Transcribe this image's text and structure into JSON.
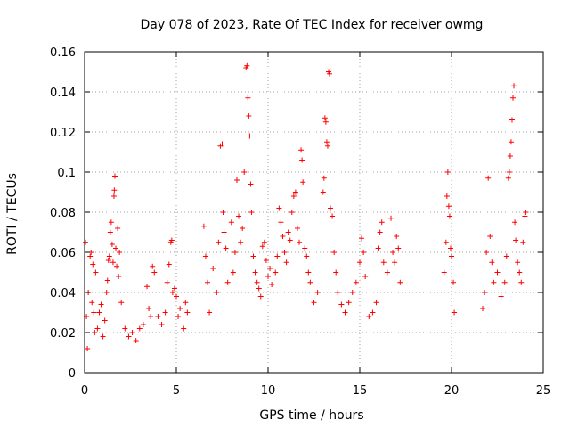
{
  "chart_data": {
    "type": "scatter",
    "title": "Day 078 of 2023, Rate Of TEC Index for receiver owmg",
    "xlabel": "GPS time / hours",
    "ylabel": "ROTI / TECUs",
    "xlim": [
      0,
      25
    ],
    "ylim": [
      0,
      0.16
    ],
    "xticks": [
      "0",
      "5",
      "10",
      "15",
      "20",
      "25"
    ],
    "yticks": [
      "0",
      "0.02",
      "0.04",
      "0.06",
      "0.08",
      "0.1",
      "0.12",
      "0.14",
      "0.16"
    ],
    "grid": true,
    "marker": "+",
    "color": "#ff0000",
    "series": [
      {
        "points": [
          [
            0.05,
            0.065
          ],
          [
            0.1,
            0.028
          ],
          [
            0.15,
            0.012
          ],
          [
            0.2,
            0.04
          ],
          [
            0.3,
            0.058
          ],
          [
            0.35,
            0.06
          ],
          [
            0.4,
            0.035
          ],
          [
            0.45,
            0.054
          ],
          [
            0.5,
            0.03
          ],
          [
            0.55,
            0.02
          ],
          [
            0.6,
            0.05
          ],
          [
            0.7,
            0.022
          ],
          [
            0.8,
            0.03
          ],
          [
            0.9,
            0.034
          ],
          [
            1.0,
            0.018
          ],
          [
            1.1,
            0.026
          ],
          [
            1.2,
            0.04
          ],
          [
            1.25,
            0.046
          ],
          [
            1.3,
            0.056
          ],
          [
            1.35,
            0.058
          ],
          [
            1.4,
            0.07
          ],
          [
            1.45,
            0.075
          ],
          [
            1.5,
            0.064
          ],
          [
            1.55,
            0.055
          ],
          [
            1.6,
            0.088
          ],
          [
            1.62,
            0.091
          ],
          [
            1.65,
            0.098
          ],
          [
            1.7,
            0.062
          ],
          [
            1.75,
            0.053
          ],
          [
            1.8,
            0.072
          ],
          [
            1.85,
            0.048
          ],
          [
            1.9,
            0.06
          ],
          [
            2.0,
            0.035
          ],
          [
            2.2,
            0.022
          ],
          [
            2.4,
            0.018
          ],
          [
            2.6,
            0.02
          ],
          [
            2.8,
            0.016
          ],
          [
            3.0,
            0.022
          ],
          [
            3.2,
            0.024
          ],
          [
            3.4,
            0.043
          ],
          [
            3.5,
            0.032
          ],
          [
            3.6,
            0.028
          ],
          [
            3.7,
            0.053
          ],
          [
            3.8,
            0.05
          ],
          [
            4.0,
            0.028
          ],
          [
            4.2,
            0.024
          ],
          [
            4.4,
            0.03
          ],
          [
            4.5,
            0.045
          ],
          [
            4.6,
            0.054
          ],
          [
            4.7,
            0.065
          ],
          [
            4.75,
            0.066
          ],
          [
            4.8,
            0.04
          ],
          [
            4.9,
            0.042
          ],
          [
            5.0,
            0.038
          ],
          [
            5.1,
            0.028
          ],
          [
            5.2,
            0.032
          ],
          [
            5.4,
            0.022
          ],
          [
            5.5,
            0.035
          ],
          [
            5.6,
            0.03
          ],
          [
            6.5,
            0.073
          ],
          [
            6.6,
            0.058
          ],
          [
            6.7,
            0.045
          ],
          [
            6.8,
            0.03
          ],
          [
            7.0,
            0.052
          ],
          [
            7.2,
            0.04
          ],
          [
            7.3,
            0.065
          ],
          [
            7.4,
            0.113
          ],
          [
            7.5,
            0.114
          ],
          [
            7.55,
            0.08
          ],
          [
            7.6,
            0.07
          ],
          [
            7.7,
            0.062
          ],
          [
            7.8,
            0.045
          ],
          [
            8.0,
            0.075
          ],
          [
            8.1,
            0.05
          ],
          [
            8.2,
            0.06
          ],
          [
            8.3,
            0.096
          ],
          [
            8.4,
            0.078
          ],
          [
            8.5,
            0.065
          ],
          [
            8.6,
            0.072
          ],
          [
            8.7,
            0.1
          ],
          [
            8.8,
            0.152
          ],
          [
            8.85,
            0.153
          ],
          [
            8.9,
            0.137
          ],
          [
            8.95,
            0.128
          ],
          [
            9.0,
            0.118
          ],
          [
            9.05,
            0.094
          ],
          [
            9.1,
            0.08
          ],
          [
            9.2,
            0.058
          ],
          [
            9.3,
            0.05
          ],
          [
            9.4,
            0.045
          ],
          [
            9.5,
            0.042
          ],
          [
            9.6,
            0.038
          ],
          [
            9.7,
            0.063
          ],
          [
            9.8,
            0.065
          ],
          [
            9.9,
            0.056
          ],
          [
            10.0,
            0.048
          ],
          [
            10.1,
            0.052
          ],
          [
            10.2,
            0.044
          ],
          [
            10.4,
            0.05
          ],
          [
            10.5,
            0.058
          ],
          [
            10.6,
            0.082
          ],
          [
            10.7,
            0.075
          ],
          [
            10.8,
            0.068
          ],
          [
            10.9,
            0.06
          ],
          [
            11.0,
            0.055
          ],
          [
            11.1,
            0.07
          ],
          [
            11.2,
            0.066
          ],
          [
            11.3,
            0.08
          ],
          [
            11.4,
            0.088
          ],
          [
            11.5,
            0.09
          ],
          [
            11.6,
            0.072
          ],
          [
            11.7,
            0.065
          ],
          [
            11.8,
            0.111
          ],
          [
            11.85,
            0.106
          ],
          [
            11.9,
            0.095
          ],
          [
            12.0,
            0.062
          ],
          [
            12.1,
            0.058
          ],
          [
            12.2,
            0.05
          ],
          [
            12.3,
            0.045
          ],
          [
            12.5,
            0.035
          ],
          [
            12.7,
            0.04
          ],
          [
            13.0,
            0.09
          ],
          [
            13.05,
            0.097
          ],
          [
            13.1,
            0.127
          ],
          [
            13.15,
            0.125
          ],
          [
            13.2,
            0.115
          ],
          [
            13.25,
            0.113
          ],
          [
            13.3,
            0.15
          ],
          [
            13.35,
            0.149
          ],
          [
            13.4,
            0.082
          ],
          [
            13.5,
            0.078
          ],
          [
            13.6,
            0.06
          ],
          [
            13.7,
            0.05
          ],
          [
            13.8,
            0.04
          ],
          [
            14.0,
            0.034
          ],
          [
            14.2,
            0.03
          ],
          [
            14.4,
            0.035
          ],
          [
            14.6,
            0.04
          ],
          [
            14.8,
            0.045
          ],
          [
            15.0,
            0.055
          ],
          [
            15.1,
            0.067
          ],
          [
            15.2,
            0.06
          ],
          [
            15.3,
            0.048
          ],
          [
            15.5,
            0.028
          ],
          [
            15.7,
            0.03
          ],
          [
            15.9,
            0.035
          ],
          [
            16.0,
            0.062
          ],
          [
            16.1,
            0.07
          ],
          [
            16.2,
            0.075
          ],
          [
            16.3,
            0.055
          ],
          [
            16.5,
            0.05
          ],
          [
            16.7,
            0.077
          ],
          [
            16.8,
            0.06
          ],
          [
            16.9,
            0.055
          ],
          [
            17.0,
            0.068
          ],
          [
            17.1,
            0.062
          ],
          [
            17.2,
            0.045
          ],
          [
            19.6,
            0.05
          ],
          [
            19.7,
            0.065
          ],
          [
            19.75,
            0.088
          ],
          [
            19.8,
            0.1
          ],
          [
            19.85,
            0.083
          ],
          [
            19.9,
            0.078
          ],
          [
            19.95,
            0.062
          ],
          [
            20.0,
            0.058
          ],
          [
            20.1,
            0.045
          ],
          [
            20.15,
            0.03
          ],
          [
            21.7,
            0.032
          ],
          [
            21.8,
            0.04
          ],
          [
            21.9,
            0.06
          ],
          [
            22.0,
            0.097
          ],
          [
            22.1,
            0.068
          ],
          [
            22.2,
            0.055
          ],
          [
            22.3,
            0.045
          ],
          [
            22.5,
            0.05
          ],
          [
            22.7,
            0.038
          ],
          [
            22.9,
            0.045
          ],
          [
            23.0,
            0.058
          ],
          [
            23.1,
            0.097
          ],
          [
            23.15,
            0.1
          ],
          [
            23.2,
            0.108
          ],
          [
            23.25,
            0.115
          ],
          [
            23.3,
            0.126
          ],
          [
            23.35,
            0.137
          ],
          [
            23.4,
            0.143
          ],
          [
            23.45,
            0.075
          ],
          [
            23.5,
            0.066
          ],
          [
            23.6,
            0.055
          ],
          [
            23.7,
            0.05
          ],
          [
            23.8,
            0.045
          ],
          [
            23.9,
            0.065
          ],
          [
            24.0,
            0.078
          ],
          [
            24.05,
            0.08
          ]
        ]
      }
    ]
  }
}
